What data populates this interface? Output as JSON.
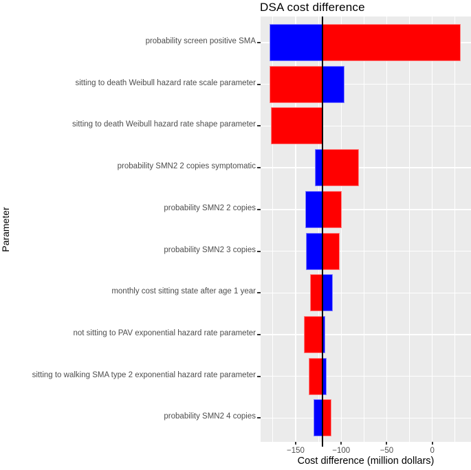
{
  "chart_data": {
    "type": "bar",
    "subtype": "tornado",
    "orientation": "horizontal",
    "title": "DSA cost difference",
    "xlabel": "Cost difference (million dollars)",
    "ylabel": "Parameter",
    "xlim": [
      -188.5,
      42.5
    ],
    "baseline": -120.3,
    "x_major_ticks": [
      -150,
      -100,
      -50,
      0
    ],
    "x_tick_labels": [
      "−150",
      "−100",
      "−50",
      "0"
    ],
    "x_minor_gridlines": [
      -175,
      -125,
      -75,
      -25,
      25
    ],
    "grid": "on",
    "legend": "none",
    "bars": [
      {
        "label": "probability screen positive SMA",
        "left_value": -178.4,
        "right_value": 31.2,
        "left_color": "blue",
        "right_color": "red"
      },
      {
        "label": "sitting to death Weibull hazard rate scale parameter",
        "left_value": -178.7,
        "right_value": -96.4,
        "left_color": "red",
        "right_color": "blue"
      },
      {
        "label": "sitting to death Weibull hazard rate shape parameter",
        "left_value": -177.2,
        "right_value": -120.3,
        "left_color": "red",
        "right_color": "blue"
      },
      {
        "label": "probability SMN2 2 copies symptomatic",
        "left_value": -128.6,
        "right_value": -80.8,
        "left_color": "blue",
        "right_color": "red"
      },
      {
        "label": "probability SMN2 2 copies",
        "left_value": -139.4,
        "right_value": -99.4,
        "left_color": "blue",
        "right_color": "red"
      },
      {
        "label": "probability SMN2 3 copies",
        "left_value": -138.7,
        "right_value": -101.7,
        "left_color": "blue",
        "right_color": "red"
      },
      {
        "label": "monthly cost sitting state after age 1 year",
        "left_value": -134.1,
        "right_value": -109.0,
        "left_color": "red",
        "right_color": "blue"
      },
      {
        "label": "not sitting to PAV exponential hazard rate parameter",
        "left_value": -140.7,
        "right_value": -117.4,
        "left_color": "red",
        "right_color": "blue"
      },
      {
        "label": "sitting to walking SMA type 2 exponential hazard rate parameter",
        "left_value": -135.7,
        "right_value": -116.1,
        "left_color": "red",
        "right_color": "blue"
      },
      {
        "label": "probability SMN2 4 copies",
        "left_value": -130.4,
        "right_value": -110.5,
        "left_color": "blue",
        "right_color": "red"
      }
    ],
    "colors": {
      "red": "#FF0000",
      "blue": "#0000FF",
      "red_border": "#FF8585",
      "blue_border": "#8585FF",
      "panel_background": "#EBEBEB",
      "gridline": "#FFFFFF",
      "baseline_line": "#000000",
      "axis_text": "#4D4D4D",
      "tick_mark": "#333333",
      "title_text": "#000000"
    }
  }
}
